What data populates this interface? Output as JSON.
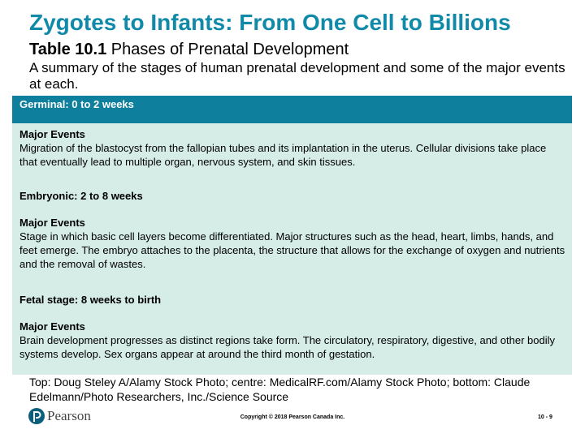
{
  "header": {
    "title": "Zygotes to Infants: From One Cell to Billions",
    "table_label": "Table 10.1",
    "table_title": "Phases of Prenatal Development",
    "caption": "A summary of the stages of human prenatal development and some of the major events at each."
  },
  "table": {
    "stages": [
      {
        "heading": "Germinal: 0 to 2 weeks",
        "events_label": "Major Events",
        "events": "Migration of the blastocyst from the fallopian tubes and its implantation in the uterus. Cellular divisions take place that eventually lead to multiple organ, nervous system, and skin tissues."
      },
      {
        "heading": "Embryonic: 2 to 8 weeks",
        "events_label": "Major Events",
        "events": "Stage in which basic cell layers become differentiated. Major structures such as the head, heart, limbs, hands, and feet emerge. The embryo attaches to the placenta, the structure that allows for the exchange of oxygen and nutrients and the removal of wastes."
      },
      {
        "heading": "Fetal stage: 8 weeks to birth",
        "events_label": "Major Events",
        "events": "Brain development progresses as distinct regions take form. The circulatory, respiratory, digestive, and other bodily systems develop. Sex organs appear at around the third month of gestation."
      }
    ]
  },
  "credit": "Top: Doug Steley A/Alamy Stock Photo; centre: MedicalRF.com/Alamy Stock Photo; bottom: Claude Edelmann/Photo Researchers, Inc./Science Source",
  "footer": {
    "brand": "Pearson",
    "copyright": "Copyright © 2018 Pearson Canada Inc.",
    "page": "10 - 9"
  }
}
